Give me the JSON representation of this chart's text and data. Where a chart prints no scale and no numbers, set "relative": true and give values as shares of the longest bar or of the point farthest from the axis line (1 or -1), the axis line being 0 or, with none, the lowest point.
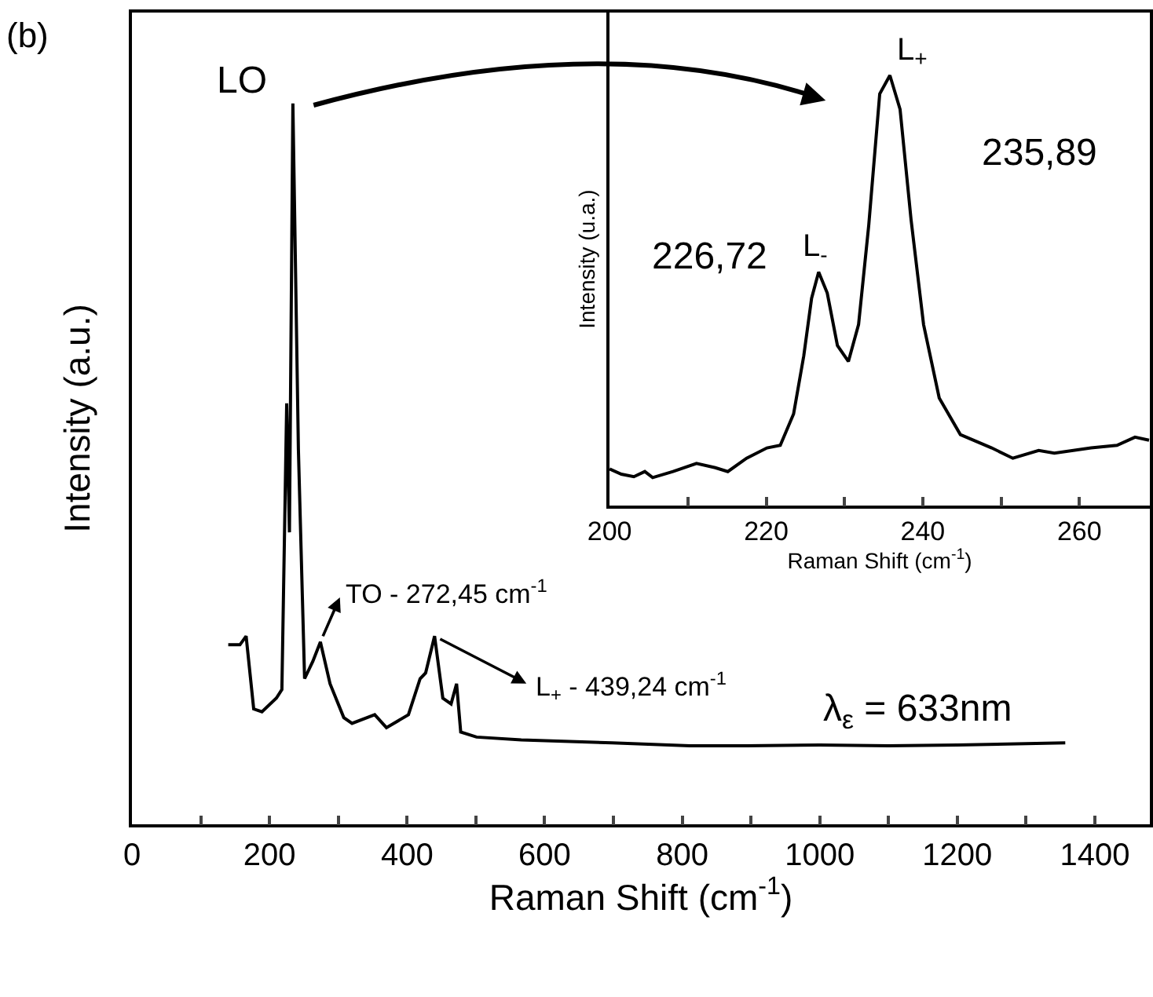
{
  "chart_data": [
    {
      "type": "line",
      "title": "(b)",
      "xlabel": "Raman Shift (cm$^{-1}$)",
      "ylabel": "Intensity (a.u.)",
      "relative": true,
      "tick_labels": "x",
      "x": [
        140,
        157,
        166,
        177,
        189,
        210,
        218,
        225,
        229,
        234,
        242,
        251,
        263,
        274,
        288,
        308,
        320,
        353,
        370,
        402,
        419,
        427,
        440,
        452,
        464,
        472,
        478,
        501,
        566,
        698,
        811,
        894,
        1000,
        1100,
        1200,
        1357
      ],
      "series": [
        {
          "color": "#000000",
          "values": [
            0.249,
            0.249,
            0.261,
            0.16,
            0.156,
            0.175,
            0.187,
            0.584,
            0.405,
            1.0,
            0.52,
            0.202,
            0.226,
            0.253,
            0.195,
            0.148,
            0.14,
            0.152,
            0.134,
            0.152,
            0.202,
            0.21,
            0.261,
            0.175,
            0.167,
            0.195,
            0.128,
            0.121,
            0.117,
            0.113,
            0.109,
            0.109,
            0.11,
            0.109,
            0.11,
            0.113
          ]
        }
      ],
      "xlim": [
        0,
        1480
      ],
      "xticks": [
        0,
        {
          "value": 100,
          "label": null
        },
        200,
        {
          "value": 300,
          "label": null
        },
        400,
        {
          "value": 500,
          "label": null
        },
        600,
        {
          "value": 700,
          "label": null
        },
        800,
        {
          "value": 900,
          "label": null
        },
        1000,
        {
          "value": 1100,
          "label": null
        },
        1200,
        {
          "value": 1300,
          "label": null
        },
        1400
      ],
      "annotations": [
        {
          "text": "LO",
          "x": 234,
          "y": 1.0
        },
        {
          "text": "TO - 272,45 cm$^{-1}$",
          "x": 274,
          "y": 0.253
        },
        {
          "text": "L$_{+}$ - 439,24 cm$^{-1}$",
          "x": 440,
          "y": 0.261
        },
        "λ$_{ε}$ = 633nm"
      ]
    },
    {
      "type": "line",
      "xlabel": "Raman Shift (cm$^{-1}$)",
      "ylabel": "Intensity (u.a.)",
      "relative": true,
      "tick_labels": "x",
      "x": [
        200,
        201.5,
        203.1,
        204.5,
        205.5,
        208.1,
        211.1,
        213.5,
        215.1,
        217.5,
        220.1,
        221.8,
        223.5,
        224.8,
        225.8,
        226.7,
        227.8,
        229.1,
        230.5,
        231.8,
        233.1,
        234.5,
        235.8,
        237.1,
        238.5,
        240.1,
        242.1,
        244.8,
        248.8,
        251.5,
        254.8,
        256.8,
        261.5,
        264.8,
        267.1,
        268.9
      ],
      "series": [
        {
          "color": "#000000",
          "values": [
            0.085,
            0.073,
            0.067,
            0.079,
            0.065,
            0.079,
            0.098,
            0.088,
            0.079,
            0.11,
            0.134,
            0.14,
            0.213,
            0.348,
            0.482,
            0.543,
            0.494,
            0.372,
            0.335,
            0.421,
            0.652,
            0.957,
            1.0,
            0.921,
            0.665,
            0.421,
            0.25,
            0.165,
            0.134,
            0.11,
            0.128,
            0.122,
            0.134,
            0.14,
            0.159,
            0.152
          ]
        }
      ],
      "xlim": [
        200,
        269
      ],
      "xticks": [
        200,
        {
          "value": 210,
          "label": null
        },
        220,
        {
          "value": 230,
          "label": null
        },
        240,
        {
          "value": 250,
          "label": null
        },
        260
      ],
      "annotations": [
        {
          "text": "L$_{-}$",
          "x": 226.7,
          "y": 0.543
        },
        {
          "text": "L$_{+}$",
          "x": 235.8,
          "y": 1.0
        },
        {
          "text": "226,72",
          "x": 226.7,
          "y": 0.543
        },
        {
          "text": "235,89",
          "x": 235.8,
          "y": 1.0
        }
      ]
    }
  ]
}
